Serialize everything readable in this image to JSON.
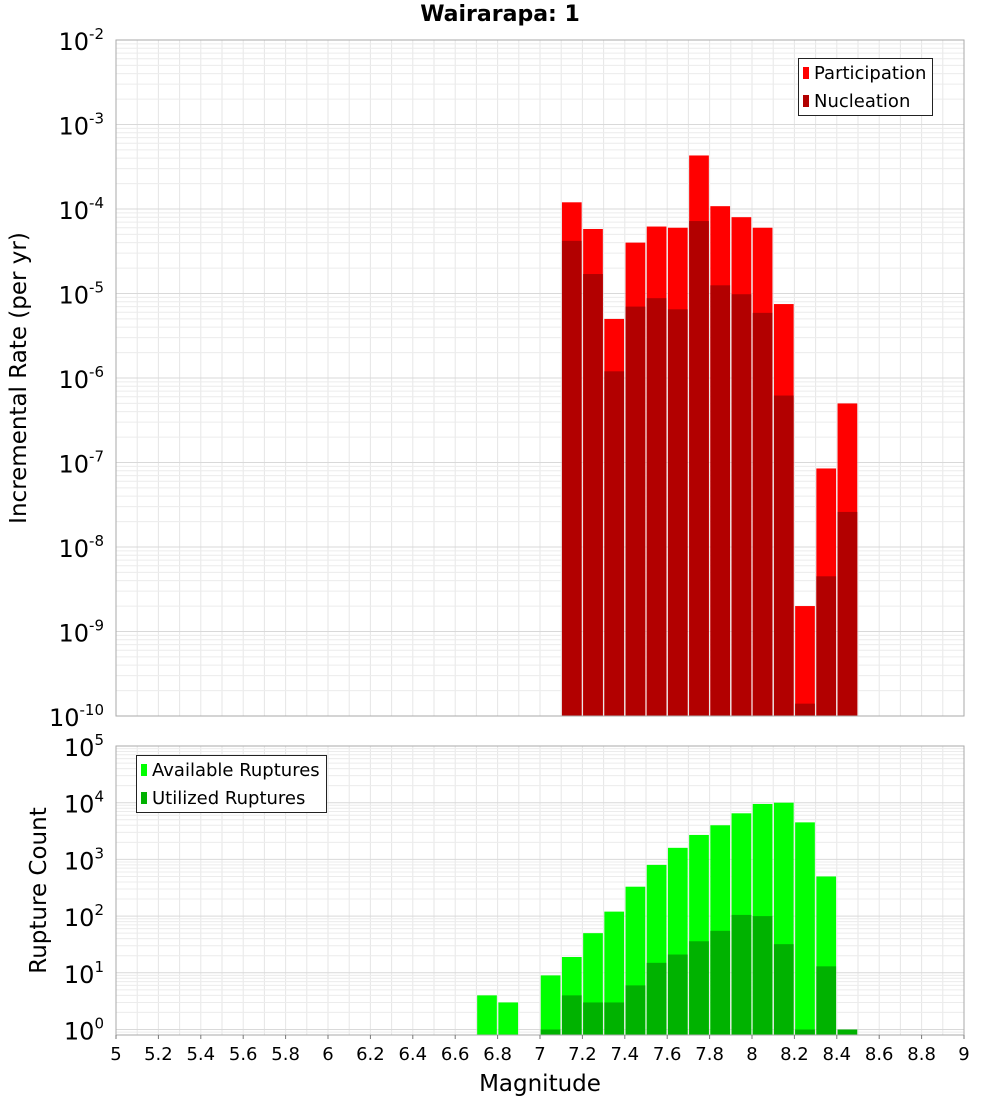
{
  "title": "Wairarapa: 1",
  "colors": {
    "participation": "#ff0000",
    "nucleation": "#b20000",
    "available": "#00ff00",
    "utilized": "#00b200"
  },
  "chart_data": [
    {
      "type": "bar",
      "title": "Wairarapa: 1",
      "xlabel": "",
      "ylabel": "Incremental Rate (per yr)",
      "yscale": "log",
      "ylim": [
        1e-10,
        0.01
      ],
      "xlim": [
        5,
        9
      ],
      "legend_position": "top-right",
      "series": [
        {
          "name": "Participation",
          "x": [
            7.15,
            7.25,
            7.35,
            7.45,
            7.55,
            7.65,
            7.75,
            7.85,
            7.95,
            8.05,
            8.15,
            8.25,
            8.35,
            8.45
          ],
          "values": [
            0.00012,
            5.8e-05,
            5e-06,
            4e-05,
            6.2e-05,
            6e-05,
            0.00043,
            0.000108,
            8e-05,
            6e-05,
            7.5e-06,
            2e-09,
            8.5e-08,
            5e-07
          ]
        },
        {
          "name": "Nucleation",
          "x": [
            7.15,
            7.25,
            7.35,
            7.45,
            7.55,
            7.65,
            7.75,
            7.85,
            7.95,
            8.05,
            8.15,
            8.25,
            8.35,
            8.45
          ],
          "values": [
            4.2e-05,
            1.7e-05,
            1.2e-06,
            7e-06,
            8.8e-06,
            6.5e-06,
            7.2e-05,
            1.25e-05,
            9.8e-06,
            5.9e-06,
            6.2e-07,
            1.4e-10,
            4.5e-09,
            2.6e-08
          ]
        }
      ]
    },
    {
      "type": "bar",
      "xlabel": "Magnitude",
      "ylabel": "Rupture Count",
      "yscale": "log",
      "ylim": [
        0.8,
        100000.0
      ],
      "xlim": [
        5,
        9
      ],
      "x_ticks": [
        "5",
        "5.2",
        "5.4",
        "5.6",
        "5.8",
        "6",
        "6.2",
        "6.4",
        "6.6",
        "6.8",
        "7",
        "7.2",
        "7.4",
        "7.6",
        "7.8",
        "8",
        "8.2",
        "8.4",
        "8.6",
        "8.8",
        "9"
      ],
      "legend_position": "top-left",
      "series": [
        {
          "name": "Available Ruptures",
          "x": [
            6.75,
            6.85,
            7.05,
            7.15,
            7.25,
            7.35,
            7.45,
            7.55,
            7.65,
            7.75,
            7.85,
            7.95,
            8.05,
            8.15,
            8.25,
            8.35
          ],
          "values": [
            4,
            3,
            9,
            19,
            50,
            120,
            330,
            800,
            1600,
            2700,
            4000,
            6500,
            9500,
            10000,
            4500,
            500
          ]
        },
        {
          "name": "Utilized Ruptures",
          "x": [
            7.05,
            7.15,
            7.25,
            7.35,
            7.45,
            7.55,
            7.65,
            7.75,
            7.85,
            7.95,
            8.05,
            8.15,
            8.25,
            8.35,
            8.45
          ],
          "values": [
            1,
            4,
            3,
            3,
            6,
            15,
            21,
            36,
            55,
            105,
            100,
            32,
            1,
            13,
            1
          ]
        }
      ]
    }
  ]
}
